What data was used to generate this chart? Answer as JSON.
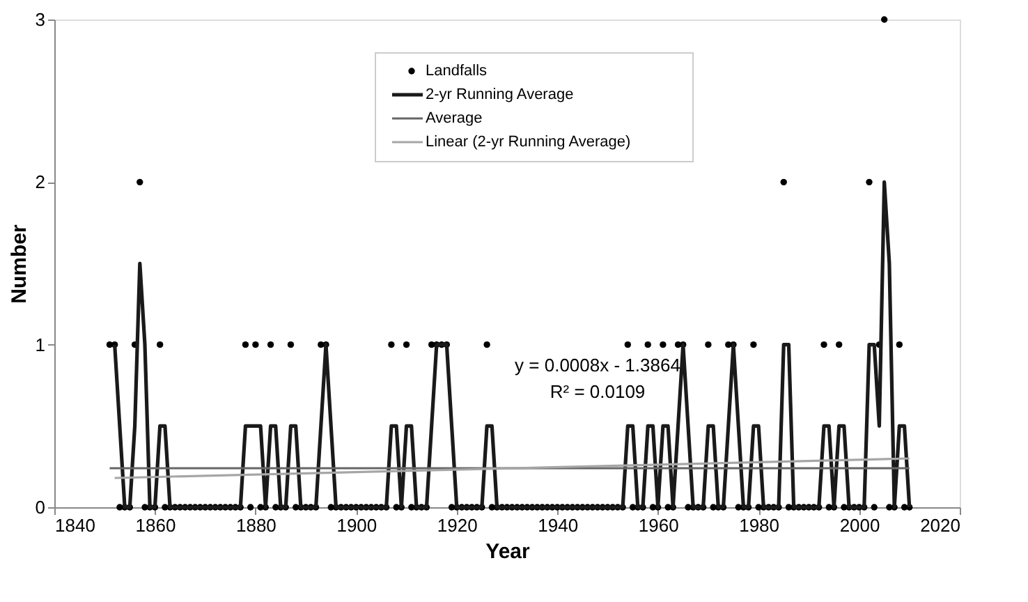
{
  "chart_data": {
    "type": "line",
    "xlabel": "Year",
    "ylabel": "Number",
    "xlim": [
      1840,
      2020
    ],
    "xticks": [
      1840,
      1860,
      1880,
      1900,
      1920,
      1940,
      1960,
      1980,
      2000,
      2020
    ],
    "ylim": [
      0,
      3
    ],
    "yticks": [
      0,
      1,
      2,
      3
    ],
    "legend": "top",
    "annotations": [
      "y = 0.0008x - 1.3864",
      "R² = 0.0109"
    ],
    "x": [
      1851,
      1852,
      1853,
      1854,
      1855,
      1856,
      1857,
      1858,
      1859,
      1860,
      1861,
      1862,
      1863,
      1864,
      1865,
      1866,
      1867,
      1868,
      1869,
      1870,
      1871,
      1872,
      1873,
      1874,
      1875,
      1876,
      1877,
      1878,
      1879,
      1880,
      1881,
      1882,
      1883,
      1884,
      1885,
      1886,
      1887,
      1888,
      1889,
      1890,
      1891,
      1892,
      1893,
      1894,
      1895,
      1896,
      1897,
      1898,
      1899,
      1900,
      1901,
      1902,
      1903,
      1904,
      1905,
      1906,
      1907,
      1908,
      1909,
      1910,
      1911,
      1912,
      1913,
      1914,
      1915,
      1916,
      1917,
      1918,
      1919,
      1920,
      1921,
      1922,
      1923,
      1924,
      1925,
      1926,
      1927,
      1928,
      1929,
      1930,
      1931,
      1932,
      1933,
      1934,
      1935,
      1936,
      1937,
      1938,
      1939,
      1940,
      1941,
      1942,
      1943,
      1944,
      1945,
      1946,
      1947,
      1948,
      1949,
      1950,
      1951,
      1952,
      1953,
      1954,
      1955,
      1956,
      1957,
      1958,
      1959,
      1960,
      1961,
      1962,
      1963,
      1964,
      1965,
      1966,
      1967,
      1968,
      1969,
      1970,
      1971,
      1972,
      1973,
      1974,
      1975,
      1976,
      1977,
      1978,
      1979,
      1980,
      1981,
      1982,
      1983,
      1984,
      1985,
      1986,
      1987,
      1988,
      1989,
      1990,
      1991,
      1992,
      1993,
      1994,
      1995,
      1996,
      1997,
      1998,
      1999,
      2000,
      2001,
      2002,
      2003,
      2004,
      2005,
      2006,
      2007,
      2008,
      2009,
      2010
    ],
    "series": [
      {
        "name": "Landfalls",
        "type": "scatter",
        "marker": "circle",
        "color": "#000000",
        "values": [
          1,
          1,
          0,
          0,
          0,
          1,
          2,
          0,
          0,
          0,
          1,
          0,
          0,
          0,
          0,
          0,
          0,
          0,
          0,
          0,
          0,
          0,
          0,
          0,
          0,
          0,
          0,
          1,
          0,
          1,
          0,
          0,
          1,
          0,
          0,
          0,
          1,
          0,
          0,
          0,
          0,
          0,
          1,
          1,
          0,
          0,
          0,
          0,
          0,
          0,
          0,
          0,
          0,
          0,
          0,
          0,
          1,
          0,
          0,
          1,
          0,
          0,
          0,
          0,
          1,
          1,
          1,
          1,
          0,
          0,
          0,
          0,
          0,
          0,
          0,
          1,
          0,
          0,
          0,
          0,
          0,
          0,
          0,
          0,
          0,
          0,
          0,
          0,
          0,
          0,
          0,
          0,
          0,
          0,
          0,
          0,
          0,
          0,
          0,
          0,
          0,
          0,
          0,
          1,
          0,
          0,
          0,
          1,
          0,
          0,
          1,
          0,
          0,
          1,
          1,
          0,
          0,
          0,
          0,
          1,
          0,
          0,
          0,
          1,
          1,
          0,
          0,
          0,
          1,
          0,
          0,
          0,
          0,
          0,
          2,
          0,
          0,
          0,
          0,
          0,
          0,
          0,
          1,
          0,
          0,
          1,
          0,
          0,
          0,
          0,
          0,
          2,
          0,
          1,
          3,
          0,
          0,
          1,
          0,
          0
        ]
      },
      {
        "name": "2-yr Running Average",
        "color": "#1a1a1a",
        "x": [
          1852,
          1853,
          1854,
          1855,
          1856,
          1857,
          1858,
          1859,
          1860,
          1861,
          1862,
          1863,
          1864,
          1865,
          1866,
          1867,
          1868,
          1869,
          1870,
          1871,
          1872,
          1873,
          1874,
          1875,
          1876,
          1877,
          1878,
          1879,
          1880,
          1881,
          1882,
          1883,
          1884,
          1885,
          1886,
          1887,
          1888,
          1889,
          1890,
          1891,
          1892,
          1893,
          1894,
          1895,
          1896,
          1897,
          1898,
          1899,
          1900,
          1901,
          1902,
          1903,
          1904,
          1905,
          1906,
          1907,
          1908,
          1909,
          1910,
          1911,
          1912,
          1913,
          1914,
          1915,
          1916,
          1917,
          1918,
          1919,
          1920,
          1921,
          1922,
          1923,
          1924,
          1925,
          1926,
          1927,
          1928,
          1929,
          1930,
          1931,
          1932,
          1933,
          1934,
          1935,
          1936,
          1937,
          1938,
          1939,
          1940,
          1941,
          1942,
          1943,
          1944,
          1945,
          1946,
          1947,
          1948,
          1949,
          1950,
          1951,
          1952,
          1953,
          1954,
          1955,
          1956,
          1957,
          1958,
          1959,
          1960,
          1961,
          1962,
          1963,
          1964,
          1965,
          1966,
          1967,
          1968,
          1969,
          1970,
          1971,
          1972,
          1973,
          1974,
          1975,
          1976,
          1977,
          1978,
          1979,
          1980,
          1981,
          1982,
          1983,
          1984,
          1985,
          1986,
          1987,
          1988,
          1989,
          1990,
          1991,
          1992,
          1993,
          1994,
          1995,
          1996,
          1997,
          1998,
          1999,
          2000,
          2001,
          2002,
          2003,
          2004,
          2005,
          2006,
          2007,
          2008,
          2009,
          2010
        ],
        "values": [
          1,
          0.5,
          0,
          0,
          0.5,
          1.5,
          1,
          0,
          0,
          0.5,
          0.5,
          0,
          0,
          0,
          0,
          0,
          0,
          0,
          0,
          0,
          0,
          0,
          0,
          0,
          0,
          0,
          0.5,
          0.5,
          0.5,
          0.5,
          0,
          0.5,
          0.5,
          0,
          0,
          0.5,
          0.5,
          0,
          0,
          0,
          0,
          0.5,
          1,
          0.5,
          0,
          0,
          0,
          0,
          0,
          0,
          0,
          0,
          0,
          0,
          0,
          0.5,
          0.5,
          0,
          0.5,
          0.5,
          0,
          0,
          0,
          0.5,
          1,
          1,
          1,
          0.5,
          0,
          0,
          0,
          0,
          0,
          0,
          0.5,
          0.5,
          0,
          0,
          0,
          0,
          0,
          0,
          0,
          0,
          0,
          0,
          0,
          0,
          0,
          0,
          0,
          0,
          0,
          0,
          0,
          0,
          0,
          0,
          0,
          0,
          0,
          0,
          0.5,
          0.5,
          0,
          0,
          0.5,
          0.5,
          0,
          0.5,
          0.5,
          0,
          0.5,
          1,
          0.5,
          0,
          0,
          0,
          0.5,
          0.5,
          0,
          0,
          0.5,
          1,
          0.5,
          0,
          0,
          0.5,
          0.5,
          0,
          0,
          0,
          0,
          1,
          1,
          0,
          0,
          0,
          0,
          0,
          0,
          0.5,
          0.5,
          0,
          0.5,
          0.5,
          0,
          0,
          0,
          0,
          1,
          1,
          0.5,
          2,
          1.5,
          0,
          0.5,
          0.5,
          0
        ]
      },
      {
        "name": "Average",
        "color": "#666666",
        "x": [
          1851,
          2010
        ],
        "values": [
          0.24,
          0.24
        ]
      },
      {
        "name": "Linear (2-yr Running Average)",
        "color": "#a6a6a6",
        "x": [
          1852,
          2010
        ],
        "values": [
          0.18,
          0.3
        ]
      }
    ]
  }
}
